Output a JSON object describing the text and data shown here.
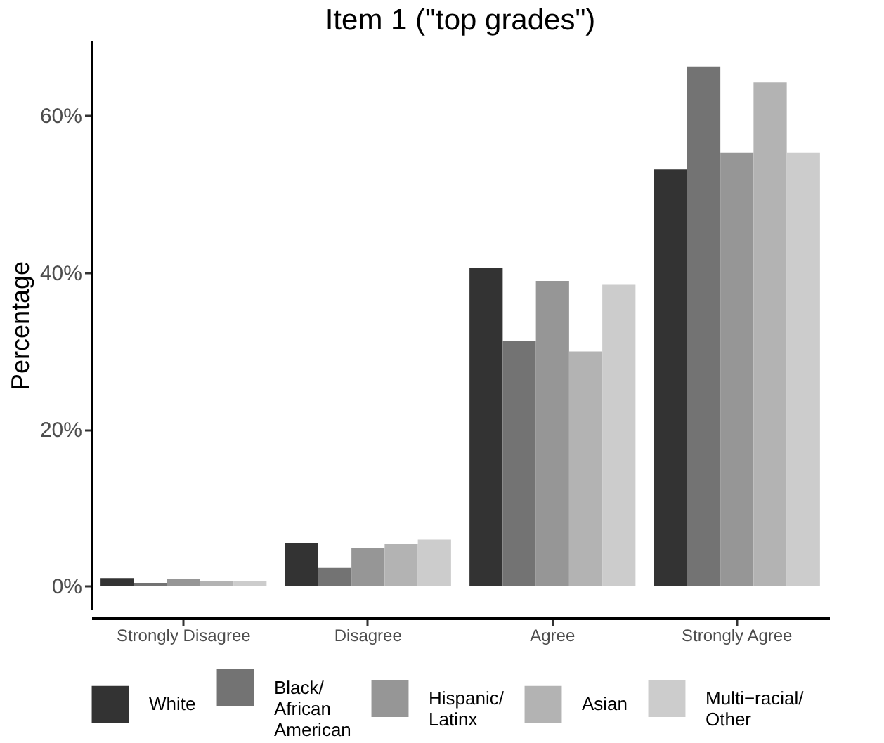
{
  "chart_data": {
    "type": "bar",
    "title": "Item 1 (\"top grades\")",
    "ylabel": "Percentage",
    "categories": [
      "Strongly Disagree",
      "Disagree",
      "Agree",
      "Strongly Agree"
    ],
    "series": [
      {
        "name": "White",
        "color": "#333333",
        "values": [
          1.0,
          5.5,
          40.5,
          53.1
        ]
      },
      {
        "name": "Black/ African American",
        "color": "#737373",
        "values": [
          0.4,
          2.3,
          31.2,
          66.2
        ]
      },
      {
        "name": "Hispanic/ Latinx",
        "color": "#969696",
        "values": [
          0.9,
          4.8,
          38.9,
          55.2
        ]
      },
      {
        "name": "Asian",
        "color": "#b3b3b3",
        "values": [
          0.6,
          5.4,
          29.9,
          64.2
        ]
      },
      {
        "name": "Multi−racial/ Other",
        "color": "#cccccc",
        "values": [
          0.6,
          5.9,
          38.4,
          55.2
        ]
      }
    ],
    "ylim": [
      -3,
      69.5
    ],
    "yticks": [
      {
        "value": 0,
        "label": "0%"
      },
      {
        "value": 20,
        "label": "20%"
      },
      {
        "value": 40,
        "label": "40%"
      },
      {
        "value": 60,
        "label": "60%"
      }
    ],
    "grid": false,
    "legend": "bottom"
  }
}
